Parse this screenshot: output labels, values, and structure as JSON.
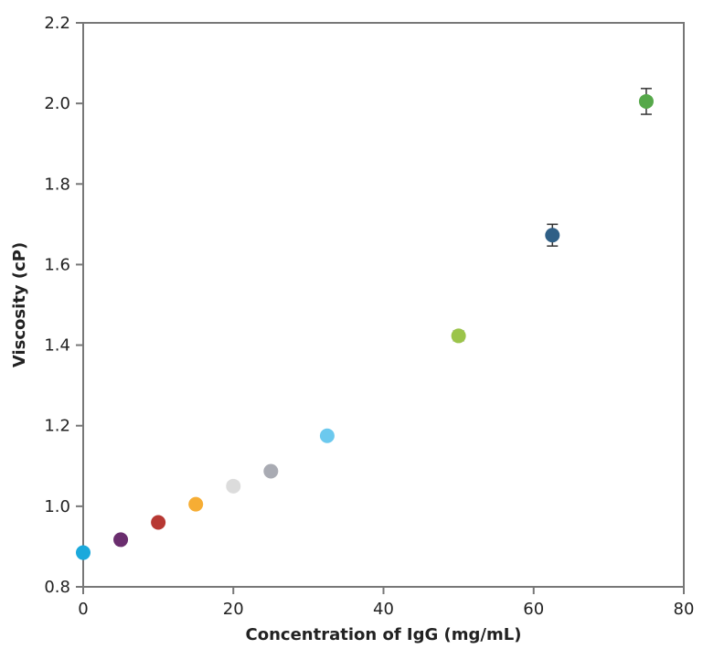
{
  "chart_data": {
    "type": "scatter",
    "title": "",
    "xlabel": "Concentration of IgG (mg/mL)",
    "ylabel": "Viscosity (cP)",
    "xlim": [
      0,
      80
    ],
    "ylim": [
      0.8,
      2.2
    ],
    "x_ticks": [
      "0",
      "20",
      "40",
      "60",
      "80"
    ],
    "y_ticks": [
      "0.8",
      "1.0",
      "1.2",
      "1.4",
      "1.6",
      "1.8",
      "2.0",
      "2.2"
    ],
    "grid": false,
    "legend": "none",
    "points": [
      {
        "x": 0,
        "y": 0.885,
        "color": "#1ba9dc"
      },
      {
        "x": 5,
        "y": 0.917,
        "color": "#6a2d6e"
      },
      {
        "x": 10,
        "y": 0.96,
        "color": "#b73833"
      },
      {
        "x": 15,
        "y": 1.005,
        "color": "#f6ad34"
      },
      {
        "x": 20,
        "y": 1.05,
        "color": "#dcdcdc"
      },
      {
        "x": 25,
        "y": 1.087,
        "color": "#a9abb3"
      },
      {
        "x": 32.5,
        "y": 1.175,
        "color": "#6cc9ee"
      },
      {
        "x": 50,
        "y": 1.423,
        "color": "#9bc44a",
        "err": 0.012
      },
      {
        "x": 62.5,
        "y": 1.673,
        "color": "#2f5f86",
        "err": 0.027
      },
      {
        "x": 75,
        "y": 2.005,
        "color": "#56a84a",
        "err": 0.032
      }
    ]
  },
  "colors": {
    "axis": "#777777",
    "errorbar": "#333333",
    "text": "#222222"
  }
}
